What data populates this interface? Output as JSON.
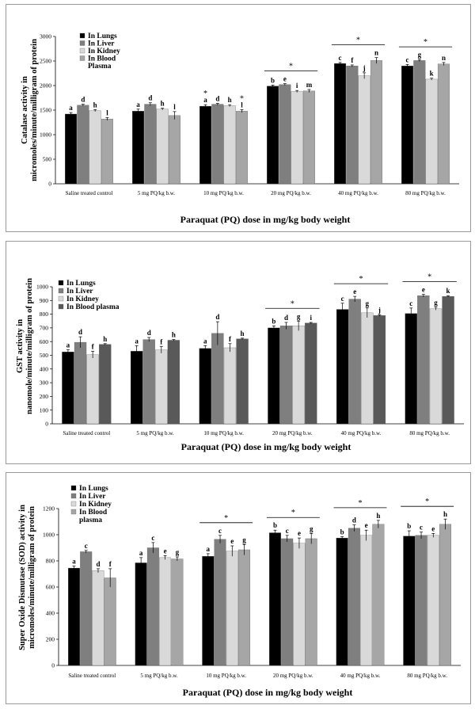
{
  "chart_data": [
    {
      "type": "bar",
      "ylabel": [
        "Catalase activity in",
        "micromoles/minute/milligram of protein"
      ],
      "xlabel": "Paraquat (PQ) dose in mg/kg body weight",
      "ylim": [
        0,
        3000
      ],
      "yticks": [
        0,
        500,
        1000,
        1500,
        2000,
        2500,
        3000
      ],
      "categories": [
        "Saline treated control",
        "5 mg PQ/kg b.w.",
        "10 mg PQ/kg b.w.",
        "20 mg PQ/kg b.w.",
        "40 mg PQ/kg b.w.",
        "80 mg PQ/kg b.w."
      ],
      "series": [
        {
          "name": "In Lungs",
          "color": "#000000",
          "values": [
            1420,
            1480,
            1580,
            1990,
            2450,
            2400
          ],
          "errors": [
            30,
            40,
            30,
            20,
            20,
            30
          ],
          "letters": [
            "a",
            "a",
            "a",
            "b",
            "c",
            "c"
          ]
        },
        {
          "name": "In Liver",
          "color": "#7f7f7f",
          "values": [
            1600,
            1620,
            1620,
            2020,
            2400,
            2510
          ],
          "errors": [
            20,
            30,
            20,
            20,
            20,
            20
          ],
          "letters": [
            "d",
            "d",
            "d",
            "e",
            "f",
            "g"
          ]
        },
        {
          "name": "In Kidney",
          "color": "#d9d9d9",
          "values": [
            1490,
            1520,
            1590,
            1880,
            2200,
            2130
          ],
          "errors": [
            20,
            20,
            20,
            20,
            60,
            20
          ],
          "letters": [
            "h",
            "h",
            "h",
            "i",
            "j",
            "k"
          ]
        },
        {
          "name": "In Blood Plasma",
          "color": "#a6a6a6",
          "values": [
            1320,
            1390,
            1480,
            1890,
            2510,
            2440
          ],
          "errors": [
            30,
            80,
            30,
            30,
            60,
            30
          ],
          "letters": [
            "l",
            "l",
            "l",
            "m",
            "n",
            "n"
          ]
        }
      ],
      "legend_lines": [
        [
          "In Lungs"
        ],
        [
          "In Liver"
        ],
        [
          "In Kidney"
        ],
        [
          "In Blood",
          "Plasma"
        ]
      ],
      "sig_markers": [
        {
          "category": 2,
          "series": 0,
          "symbol": "*"
        },
        {
          "category": 2,
          "series": 3,
          "symbol": "*"
        }
      ],
      "sig_brackets": [
        {
          "category": 3,
          "symbol": "*"
        },
        {
          "category": 4,
          "symbol": "*"
        },
        {
          "category": 5,
          "symbol": "*"
        }
      ]
    },
    {
      "type": "bar",
      "ylabel": [
        "GST activity in",
        "nanomole/minute/milligram of protein"
      ],
      "xlabel": "Paraquat (PQ) dose in mg/kg body weight",
      "ylim": [
        0,
        1000
      ],
      "yticks": [
        0,
        100,
        200,
        300,
        400,
        500,
        600,
        700,
        800,
        900,
        1000
      ],
      "categories": [
        "Saline treated control",
        "5 mg PQ/kg b.w.",
        "10 mg PQ/kg b.w.",
        "20 mg PQ/kg b.w.",
        "40 mg PQ/kg b.w.",
        "80 mg PQ/kg b.w."
      ],
      "series": [
        {
          "name": "In Lungs",
          "color": "#000000",
          "values": [
            525,
            530,
            550,
            700,
            835,
            805
          ],
          "errors": [
            15,
            40,
            20,
            15,
            45,
            40
          ],
          "letters": [
            "a",
            "a",
            "a",
            "b",
            "c",
            "c"
          ]
        },
        {
          "name": "In Liver",
          "color": "#7f7f7f",
          "values": [
            595,
            615,
            660,
            715,
            910,
            935
          ],
          "errors": [
            40,
            15,
            85,
            25,
            20,
            10
          ],
          "letters": [
            "d",
            "d",
            "d",
            "d",
            "e",
            "e"
          ]
        },
        {
          "name": "In Kidney",
          "color": "#d9d9d9",
          "values": [
            505,
            540,
            555,
            715,
            810,
            840
          ],
          "errors": [
            25,
            25,
            30,
            35,
            35,
            10
          ],
          "letters": [
            "f",
            "f",
            "f",
            "g",
            "g",
            "g"
          ]
        },
        {
          "name": "In Blood plasma",
          "color": "#595959",
          "values": [
            580,
            610,
            620,
            735,
            790,
            930
          ],
          "errors": [
            5,
            5,
            5,
            5,
            5,
            5
          ],
          "letters": [
            "h",
            "h",
            "h",
            "i",
            "j",
            "k"
          ]
        }
      ],
      "legend_lines": [
        [
          "In Lungs"
        ],
        [
          "In Liver"
        ],
        [
          "In Kidney"
        ],
        [
          "In Blood plasma"
        ]
      ],
      "sig_markers": [],
      "sig_brackets": [
        {
          "category": 3,
          "symbol": "*"
        },
        {
          "category": 4,
          "symbol": "*"
        },
        {
          "category": 5,
          "symbol": "*"
        }
      ]
    },
    {
      "type": "bar",
      "ylabel": [
        "Super Oxide Dismutase (SOD) activity in",
        "micromoles/minute/milligram of protein"
      ],
      "xlabel": "Paraquat (PQ) dose in mg/kg body weight",
      "ylim": [
        0,
        1200
      ],
      "yticks": [
        0,
        200,
        400,
        600,
        800,
        1000,
        1200
      ],
      "categories": [
        "Saline treated control",
        "5 mg PQ/kg b.w.",
        "10 mg PQ/kg b.w.",
        "20 mg PQ/kg b.w.",
        "40 mg PQ/kg b.w.",
        "80 mg PQ/kg b.w."
      ],
      "series": [
        {
          "name": "In Lungs",
          "color": "#000000",
          "values": [
            745,
            785,
            835,
            1015,
            975,
            990
          ],
          "errors": [
            15,
            40,
            20,
            20,
            10,
            40
          ],
          "letters": [
            "a",
            "a",
            "a",
            "b",
            "b",
            "b"
          ]
        },
        {
          "name": "In Liver",
          "color": "#7f7f7f",
          "values": [
            870,
            900,
            965,
            970,
            1050,
            995
          ],
          "errors": [
            10,
            40,
            30,
            25,
            25,
            25
          ],
          "letters": [
            "c",
            "c",
            "c",
            "c",
            "d",
            "c"
          ]
        },
        {
          "name": "In Kidney",
          "color": "#d9d9d9",
          "values": [
            725,
            825,
            875,
            935,
            995,
            995
          ],
          "errors": [
            15,
            15,
            40,
            40,
            40,
            15
          ],
          "letters": [
            "d",
            "e",
            "e",
            "e",
            "e",
            "e"
          ]
        },
        {
          "name": "In Blood plasma",
          "color": "#a6a6a6",
          "values": [
            670,
            815,
            885,
            970,
            1080,
            1080
          ],
          "errors": [
            70,
            15,
            40,
            40,
            30,
            40
          ],
          "letters": [
            "f",
            "g",
            "g",
            "g",
            "h",
            "h"
          ]
        }
      ],
      "legend_lines": [
        [
          "In Lungs"
        ],
        [
          "In Liver"
        ],
        [
          "In Kidney"
        ],
        [
          "In Blood",
          "plasma"
        ]
      ],
      "sig_markers": [],
      "sig_brackets": [
        {
          "category": 2,
          "symbol": "*"
        },
        {
          "category": 3,
          "symbol": "*"
        },
        {
          "category": 4,
          "symbol": "*"
        },
        {
          "category": 5,
          "symbol": "*"
        }
      ]
    }
  ]
}
